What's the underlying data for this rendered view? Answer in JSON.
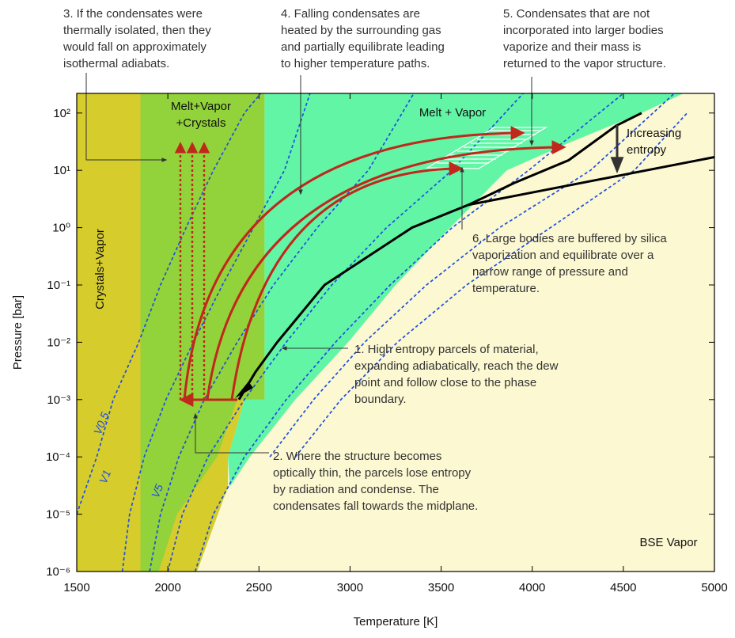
{
  "chart_data": {
    "type": "line",
    "x_label": "Temperature [K]",
    "y_label": "Pressure [bar]",
    "log_y": true,
    "xlim": [
      1500,
      5000
    ],
    "ylim": [
      1e-06,
      220
    ],
    "xticks": [
      1500,
      2000,
      2500,
      3000,
      3500,
      4000,
      4500,
      5000
    ],
    "yticks": [
      {
        "value": 100,
        "label": "10²"
      },
      {
        "value": 10,
        "label": "10¹"
      },
      {
        "value": 1,
        "label": "10⁰"
      },
      {
        "value": 0.1,
        "label": "10⁻¹"
      },
      {
        "value": 0.01,
        "label": "10⁻²"
      },
      {
        "value": 0.001,
        "label": "10⁻³"
      },
      {
        "value": 0.0001,
        "label": "10⁻⁴"
      },
      {
        "value": 1e-05,
        "label": "10⁻⁵"
      },
      {
        "value": 1e-06,
        "label": "10⁻⁶"
      }
    ],
    "background": "#fcf8d2",
    "regions": [
      {
        "color": "#62f5a6",
        "x": [
          2530,
          4830,
          4600,
          4200,
          3860,
          3550,
          3250,
          2990,
          2700,
          2450,
          2340,
          2330,
          2420,
          2530
        ],
        "y": [
          220,
          220,
          100,
          30,
          10,
          1,
          0.1,
          0.01,
          0.001,
          0.0001,
          3e-05,
          0.0001,
          0.001,
          0.001
        ]
      },
      {
        "color": "#d6cc2c",
        "x": [
          1500,
          2530,
          2530,
          2420,
          2330,
          2330,
          2160,
          1500
        ],
        "y": [
          220,
          220,
          0.001,
          0.001,
          0.0001,
          3e-05,
          1e-06,
          1e-06
        ]
      },
      {
        "color": "#92d23a",
        "x": [
          1850,
          2530,
          2530,
          2380,
          2270,
          2050,
          1950,
          1850
        ],
        "y": [
          220,
          220,
          0.001,
          0.001,
          0.0001,
          1e-05,
          1e-06,
          1e-06
        ]
      }
    ],
    "series": [
      {
        "color": "#1f4fe0",
        "style": "dashed",
        "x": [
          1500,
          1610,
          1700,
          1840,
          1960,
          2100,
          2250,
          2420,
          2510
        ],
        "values": [
          1e-05,
          0.0001,
          0.001,
          0.01,
          0.1,
          1,
          10,
          100,
          220
        ]
      },
      {
        "color": "#1f4fe0",
        "style": "dashed",
        "x": [
          1750,
          1790,
          1870,
          1990,
          2140,
          2300,
          2470,
          2640,
          2780
        ],
        "values": [
          1e-06,
          1e-05,
          0.0001,
          0.001,
          0.01,
          0.1,
          1,
          10,
          220
        ]
      },
      {
        "color": "#1f4fe0",
        "style": "dashed",
        "x": [
          1900,
          1960,
          2060,
          2200,
          2380,
          2580,
          2820,
          3100,
          3350
        ],
        "values": [
          1e-06,
          1e-05,
          0.0001,
          0.001,
          0.01,
          0.1,
          1,
          10,
          220
        ]
      },
      {
        "color": "#1f4fe0",
        "style": "dashed",
        "x": [
          2000,
          2080,
          2220,
          2420,
          2650,
          2900,
          3200,
          3560,
          3950
        ],
        "values": [
          1e-06,
          1e-05,
          0.0001,
          0.001,
          0.01,
          0.1,
          1,
          10,
          220
        ]
      },
      {
        "color": "#1f4fe0",
        "style": "dashed",
        "x": [
          2150,
          2250,
          2420,
          2650,
          2920,
          3220,
          3560,
          3980,
          4500
        ],
        "values": [
          1e-06,
          1e-05,
          0.0001,
          0.001,
          0.01,
          0.1,
          1,
          10,
          220
        ]
      },
      {
        "color": "#1f4fe0",
        "style": "dashed",
        "x": [
          2560,
          2800,
          3080,
          3420,
          3820,
          4320,
          4780
        ],
        "values": [
          0.0001,
          0.001,
          0.01,
          0.1,
          1,
          10,
          220
        ]
      },
      {
        "color": "#1f4fe0",
        "style": "dashed",
        "x": [
          2700,
          2950,
          3260,
          3640,
          4100,
          4560,
          4850
        ],
        "values": [
          0.0001,
          0.001,
          0.01,
          0.1,
          1,
          10,
          100
        ]
      },
      {
        "color": "#000000",
        "style": "solid",
        "x": [
          2390,
          2480,
          2600,
          2860,
          3340,
          3650,
          3900,
          4200,
          4460,
          4600
        ],
        "values": [
          0.001,
          0.003,
          0.01,
          0.1,
          1,
          2.5,
          6,
          15,
          60,
          100
        ]
      },
      {
        "color": "#000000",
        "style": "solid",
        "x": [
          3650,
          5000
        ],
        "values": [
          2.5,
          17
        ]
      }
    ],
    "line_labels": [
      "V0.5",
      "V1",
      "V5"
    ],
    "region_labels": [
      "Melt+Vapor",
      "+Crystals",
      "Melt + Vapor",
      "Crystals+Vapor",
      "BSE Vapor",
      "Increasing",
      "entropy"
    ],
    "annotations": [
      [
        "1. High entropy parcels of material,",
        "expanding adiabatically, reach the dew",
        "point and follow close to the phase",
        "boundary."
      ],
      [
        "2. Where the structure becomes",
        "optically thin, the parcels lose entropy",
        "by radiation and condense. The",
        "condensates fall towards the midplane."
      ],
      [
        "3. If the condensates were",
        "thermally isolated, then they",
        "would fall on approximately",
        "isothermal adiabats."
      ],
      [
        "4. Falling condensates are",
        "heated by the surrounding gas",
        "and partially equilibrate leading",
        "to higher temperature paths."
      ],
      [
        "5. Condensates that are not",
        "incorporated into larger bodies",
        "vaporize and their mass is",
        "returned to the vapor structure."
      ],
      [
        "6. Large bodies are buffered by silica",
        "vaporization and equilibrate over a",
        "narrow range of pressure and",
        "temperature."
      ]
    ]
  }
}
